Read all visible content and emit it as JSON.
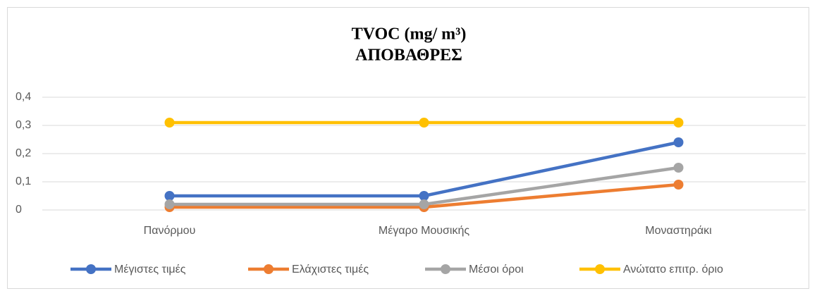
{
  "chart_data": {
    "type": "line",
    "title": "TVOC (mg/ m³)",
    "subtitle": "ΑΠΟΒΑΘΡΕΣ",
    "categories": [
      "Πανόρμου",
      "Μέγαρο Μουσικής",
      "Μοναστηράκι"
    ],
    "series": [
      {
        "name": "Μέγιστες τιμές",
        "color": "#4472c4",
        "values": [
          0.05,
          0.05,
          0.24
        ]
      },
      {
        "name": "Ελάχιστες τιμές",
        "color": "#ed7d31",
        "values": [
          0.01,
          0.01,
          0.09
        ]
      },
      {
        "name": "Μέσοι όροι",
        "color": "#a5a5a5",
        "values": [
          0.02,
          0.02,
          0.15
        ]
      },
      {
        "name": "Ανώτατο επιτρ. όριο",
        "color": "#ffc000",
        "values": [
          0.31,
          0.31,
          0.31
        ]
      }
    ],
    "ylim": [
      0,
      0.4
    ],
    "yticks": [
      0,
      {
        "value": 0.1,
        "label": "0,1"
      },
      {
        "value": 0.2,
        "label": "0,2"
      },
      {
        "value": 0.3,
        "label": "0,3"
      },
      {
        "value": 0.4,
        "label": "0,4"
      }
    ],
    "grid": true,
    "legend": "bottom"
  }
}
